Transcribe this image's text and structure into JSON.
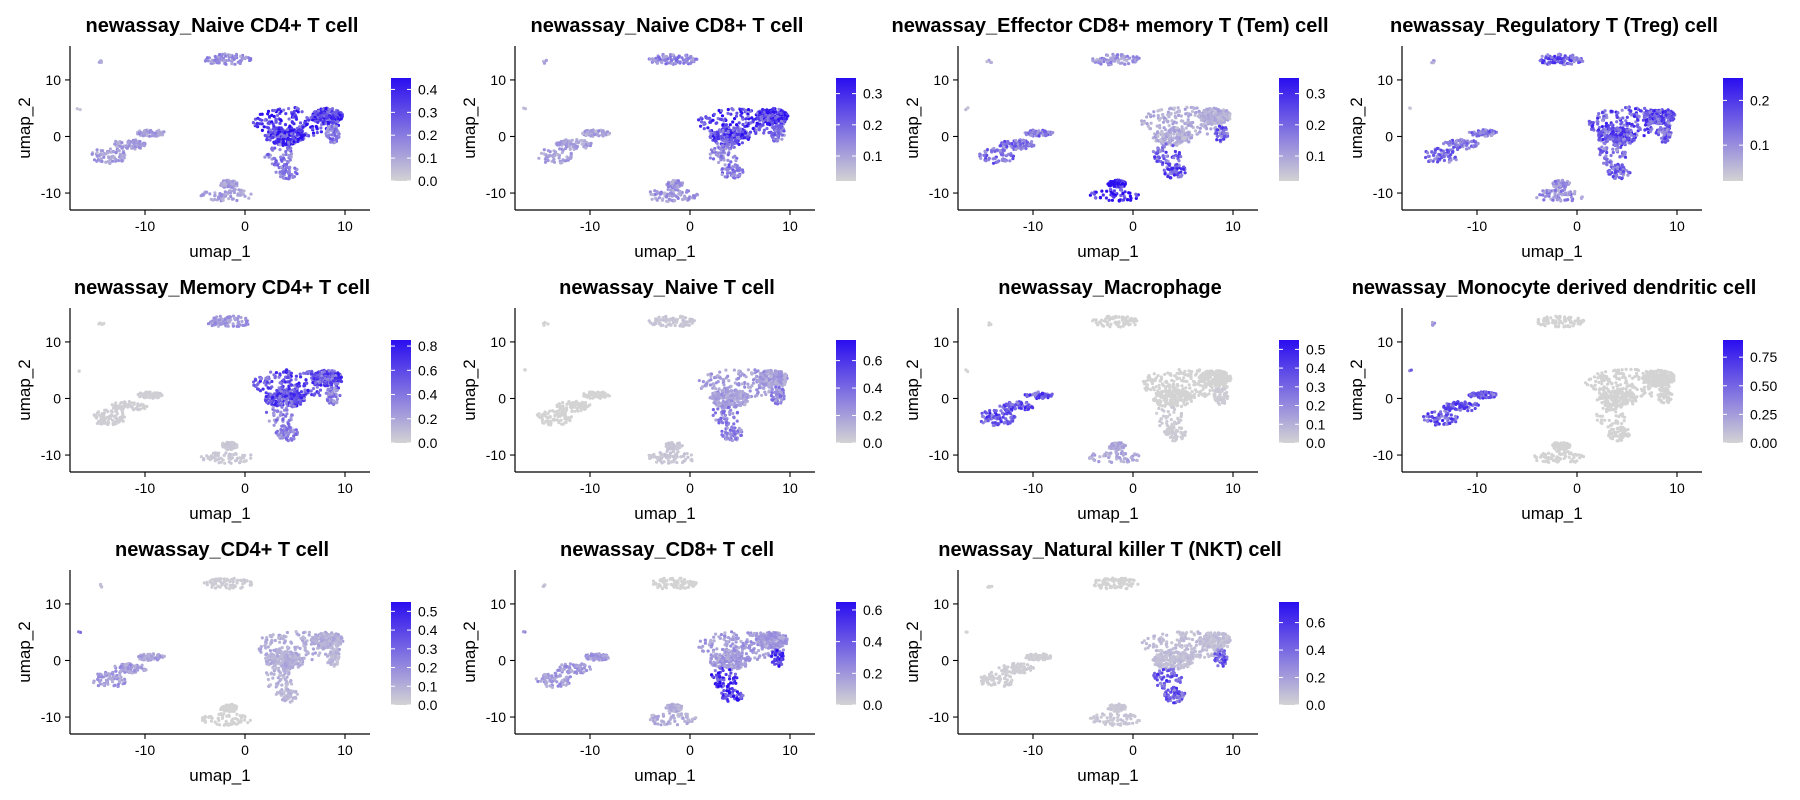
{
  "figure": {
    "colors": {
      "low": "#d3d3d3",
      "high": "#2a0df0",
      "axis": "#000000"
    }
  },
  "chart_data": [
    {
      "type": "scatter",
      "title": "newassay_Naive CD4+ T cell",
      "xlabel": "umap_1",
      "ylabel": "umap_2",
      "xlim": [
        -17.5,
        12.5
      ],
      "ylim": [
        -13,
        16
      ],
      "xticks": [
        -10,
        0,
        10
      ],
      "yticks": [
        -10,
        0,
        10
      ],
      "legend": {
        "position": "right",
        "ticks": [
          0.0,
          0.1,
          0.2,
          0.3,
          0.4
        ],
        "tick_labels": [
          "0.0",
          "0.1",
          "0.2",
          "0.3",
          "0.4"
        ],
        "min": 0,
        "max": 0.45
      },
      "cluster_expression": {
        "left_island": 0.12,
        "small_left_dot": 0.05,
        "tiny_top_left": 0.08,
        "top_island": 0.15,
        "bottom_island": 0.12,
        "main_cluster": 0.34,
        "lower_arm": 0.2
      },
      "grid": false
    },
    {
      "type": "scatter",
      "title": "newassay_Naive CD8+ T cell",
      "xlabel": "umap_1",
      "ylabel": "umap_2",
      "xlim": [
        -17.5,
        12.5
      ],
      "ylim": [
        -13,
        16
      ],
      "xticks": [
        -10,
        0,
        10
      ],
      "yticks": [
        -10,
        0,
        10
      ],
      "legend": {
        "position": "right",
        "ticks": [
          0.1,
          0.2,
          0.3
        ],
        "tick_labels": [
          "0.1",
          "0.2",
          "0.3"
        ],
        "min": 0.02,
        "max": 0.35
      },
      "cluster_expression": {
        "left_island": 0.1,
        "small_left_dot": 0.05,
        "tiny_top_left": 0.08,
        "top_island": 0.14,
        "bottom_island": 0.12,
        "main_cluster": 0.26,
        "lower_arm": 0.17
      },
      "grid": false
    },
    {
      "type": "scatter",
      "title": "newassay_Effector CD8+ memory T (Tem) cell",
      "xlabel": "umap_1",
      "ylabel": "umap_2",
      "xlim": [
        -17.5,
        12.5
      ],
      "ylim": [
        -13,
        16
      ],
      "xticks": [
        -10,
        0,
        10
      ],
      "yticks": [
        -10,
        0,
        10
      ],
      "legend": {
        "position": "right",
        "ticks": [
          0.1,
          0.2,
          0.3
        ],
        "tick_labels": [
          "0.1",
          "0.2",
          "0.3"
        ],
        "min": 0.02,
        "max": 0.35
      },
      "cluster_expression": {
        "left_island": 0.18,
        "small_left_dot": 0.08,
        "tiny_top_left": 0.1,
        "top_island": 0.12,
        "bottom_island": 0.32,
        "main_cluster": 0.08,
        "lower_arm": 0.22
      },
      "grid": false
    },
    {
      "type": "scatter",
      "title": "newassay_Regulatory T (Treg) cell",
      "xlabel": "umap_1",
      "ylabel": "umap_2",
      "xlim": [
        -17.5,
        12.5
      ],
      "ylim": [
        -13,
        16
      ],
      "xticks": [
        -10,
        0,
        10
      ],
      "yticks": [
        -10,
        0,
        10
      ],
      "legend": {
        "position": "right",
        "ticks": [
          0.1,
          0.2
        ],
        "tick_labels": [
          "0.1",
          "0.2"
        ],
        "min": 0.02,
        "max": 0.25
      },
      "cluster_expression": {
        "left_island": 0.13,
        "small_left_dot": 0.06,
        "tiny_top_left": 0.08,
        "top_island": 0.15,
        "bottom_island": 0.1,
        "main_cluster": 0.16,
        "lower_arm": 0.14
      },
      "grid": false
    },
    {
      "type": "scatter",
      "title": "newassay_Memory CD4+ T cell",
      "xlabel": "umap_1",
      "ylabel": "umap_2",
      "xlim": [
        -17.5,
        12.5
      ],
      "ylim": [
        -13,
        16
      ],
      "xticks": [
        -10,
        0,
        10
      ],
      "yticks": [
        -10,
        0,
        10
      ],
      "legend": {
        "position": "right",
        "ticks": [
          0.0,
          0.2,
          0.4,
          0.6,
          0.8
        ],
        "tick_labels": [
          "0.0",
          "0.2",
          "0.4",
          "0.6",
          "0.8"
        ],
        "min": 0,
        "max": 0.85
      },
      "cluster_expression": {
        "left_island": 0.02,
        "small_left_dot": 0.0,
        "tiny_top_left": 0.0,
        "top_island": 0.25,
        "bottom_island": 0.05,
        "main_cluster": 0.55,
        "lower_arm": 0.35
      },
      "grid": false
    },
    {
      "type": "scatter",
      "title": "newassay_Naive T cell",
      "xlabel": "umap_1",
      "ylabel": "umap_2",
      "xlim": [
        -17.5,
        12.5
      ],
      "ylim": [
        -13,
        16
      ],
      "xticks": [
        -10,
        0,
        10
      ],
      "yticks": [
        -10,
        0,
        10
      ],
      "legend": {
        "position": "right",
        "ticks": [
          0.0,
          0.2,
          0.4,
          0.6
        ],
        "tick_labels": [
          "0.0",
          "0.2",
          "0.4",
          "0.6"
        ],
        "min": 0,
        "max": 0.75
      },
      "cluster_expression": {
        "left_island": 0.0,
        "small_left_dot": 0.0,
        "tiny_top_left": 0.0,
        "top_island": 0.05,
        "bottom_island": 0.05,
        "main_cluster": 0.2,
        "lower_arm": 0.3
      },
      "grid": false
    },
    {
      "type": "scatter",
      "title": "newassay_Macrophage",
      "xlabel": "umap_1",
      "ylabel": "umap_2",
      "xlim": [
        -17.5,
        12.5
      ],
      "ylim": [
        -13,
        16
      ],
      "xticks": [
        -10,
        0,
        10
      ],
      "yticks": [
        -10,
        0,
        10
      ],
      "legend": {
        "position": "right",
        "ticks": [
          0.0,
          0.1,
          0.2,
          0.3,
          0.4,
          0.5
        ],
        "tick_labels": [
          "0.0",
          "0.1",
          "0.2",
          "0.3",
          "0.4",
          "0.5"
        ],
        "min": 0,
        "max": 0.55
      },
      "cluster_expression": {
        "left_island": 0.35,
        "small_left_dot": 0.0,
        "tiny_top_left": 0.0,
        "top_island": 0.0,
        "bottom_island": 0.12,
        "main_cluster": 0.0,
        "lower_arm": 0.02
      },
      "grid": false
    },
    {
      "type": "scatter",
      "title": "newassay_Monocyte derived dendritic cell",
      "xlabel": "umap_1",
      "ylabel": "umap_2",
      "xlim": [
        -17.5,
        12.5
      ],
      "ylim": [
        -13,
        16
      ],
      "xticks": [
        -10,
        0,
        10
      ],
      "yticks": [
        -10,
        0,
        10
      ],
      "legend": {
        "position": "right",
        "ticks": [
          0.0,
          0.25,
          0.5,
          0.75
        ],
        "tick_labels": [
          "0.00",
          "0.25",
          "0.50",
          "0.75"
        ],
        "min": 0,
        "max": 0.9
      },
      "cluster_expression": {
        "left_island": 0.55,
        "small_left_dot": 0.4,
        "tiny_top_left": 0.3,
        "top_island": 0.0,
        "bottom_island": 0.0,
        "main_cluster": 0.0,
        "lower_arm": 0.0
      },
      "grid": false
    },
    {
      "type": "scatter",
      "title": "newassay_CD4+ T cell",
      "xlabel": "umap_1",
      "ylabel": "umap_2",
      "xlim": [
        -17.5,
        12.5
      ],
      "ylim": [
        -13,
        16
      ],
      "xticks": [
        -10,
        0,
        10
      ],
      "yticks": [
        -10,
        0,
        10
      ],
      "legend": {
        "position": "right",
        "ticks": [
          0.0,
          0.1,
          0.2,
          0.3,
          0.4,
          0.5
        ],
        "tick_labels": [
          "0.0",
          "0.1",
          "0.2",
          "0.3",
          "0.4",
          "0.5"
        ],
        "min": 0,
        "max": 0.55
      },
      "cluster_expression": {
        "left_island": 0.15,
        "small_left_dot": 0.35,
        "tiny_top_left": 0.05,
        "top_island": 0.02,
        "bottom_island": 0.0,
        "main_cluster": 0.1,
        "lower_arm": 0.08
      },
      "grid": false
    },
    {
      "type": "scatter",
      "title": "newassay_CD8+ T cell",
      "xlabel": "umap_1",
      "ylabel": "umap_2",
      "xlim": [
        -17.5,
        12.5
      ],
      "ylim": [
        -13,
        16
      ],
      "xticks": [
        -10,
        0,
        10
      ],
      "yticks": [
        -10,
        0,
        10
      ],
      "legend": {
        "position": "right",
        "ticks": [
          0.0,
          0.2,
          0.4,
          0.6
        ],
        "tick_labels": [
          "0.0",
          "0.2",
          "0.4",
          "0.6"
        ],
        "min": 0,
        "max": 0.65
      },
      "cluster_expression": {
        "left_island": 0.18,
        "small_left_dot": 0.3,
        "tiny_top_left": 0.05,
        "top_island": 0.0,
        "bottom_island": 0.12,
        "main_cluster": 0.18,
        "lower_arm": 0.5
      },
      "grid": false
    },
    {
      "type": "scatter",
      "title": "newassay_Natural killer T (NKT) cell",
      "xlabel": "umap_1",
      "ylabel": "umap_2",
      "xlim": [
        -17.5,
        12.5
      ],
      "ylim": [
        -13,
        16
      ],
      "xticks": [
        -10,
        0,
        10
      ],
      "yticks": [
        -10,
        0,
        10
      ],
      "legend": {
        "position": "right",
        "ticks": [
          0.0,
          0.2,
          0.4,
          0.6
        ],
        "tick_labels": [
          "0.0",
          "0.2",
          "0.4",
          "0.6"
        ],
        "min": 0,
        "max": 0.75
      },
      "cluster_expression": {
        "left_island": 0.02,
        "small_left_dot": 0.0,
        "tiny_top_left": 0.0,
        "top_island": 0.0,
        "bottom_island": 0.05,
        "main_cluster": 0.08,
        "lower_arm": 0.45
      },
      "grid": false
    }
  ]
}
